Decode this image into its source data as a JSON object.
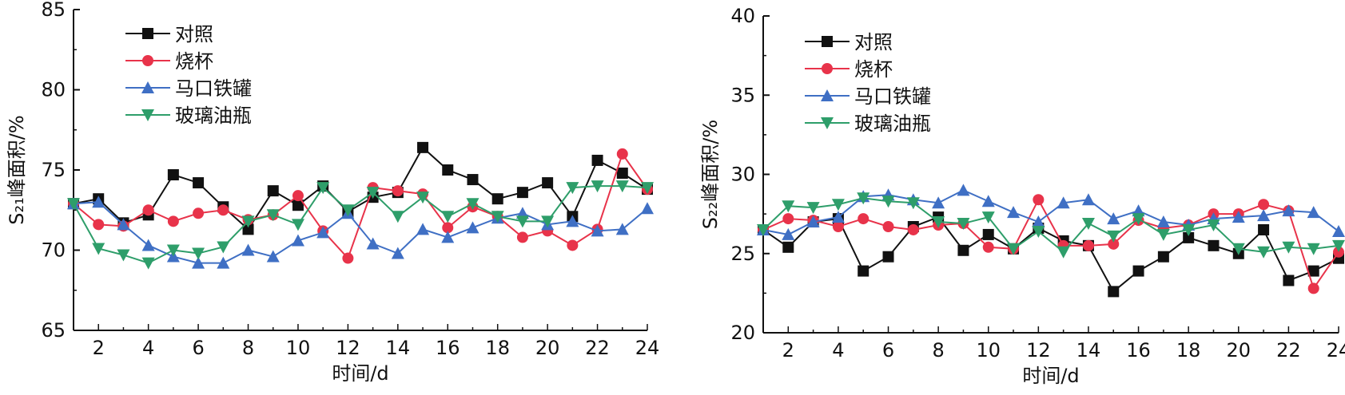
{
  "colors": {
    "对照": "#111111",
    "烧杯": "#e8334a",
    "马口铁罐": "#3f6fc4",
    "玻璃油瓶": "#2e9e6a"
  },
  "chart_data": [
    {
      "type": "line",
      "xlabel": "时间/d",
      "ylabel": "S₂₁峰面积/%",
      "xlim": [
        1,
        24
      ],
      "ylim": [
        65,
        85
      ],
      "xticks": [
        2,
        4,
        6,
        8,
        10,
        12,
        14,
        16,
        18,
        20,
        22,
        24
      ],
      "yticks": [
        65,
        70,
        75,
        80,
        85
      ],
      "x": [
        1,
        2,
        3,
        4,
        5,
        6,
        7,
        8,
        9,
        10,
        11,
        12,
        13,
        14,
        15,
        16,
        17,
        18,
        19,
        20,
        21,
        22,
        23,
        24
      ],
      "legend": "top-left",
      "series": [
        {
          "name": "对照",
          "marker": "square",
          "values": [
            72.9,
            73.2,
            71.7,
            72.2,
            74.7,
            74.2,
            72.7,
            71.3,
            73.7,
            72.8,
            74.0,
            72.4,
            73.3,
            73.6,
            76.4,
            75.0,
            74.4,
            73.2,
            73.6,
            74.2,
            72.1,
            75.6,
            74.8,
            73.8
          ]
        },
        {
          "name": "烧杯",
          "marker": "circle",
          "values": [
            72.9,
            71.6,
            71.5,
            72.5,
            71.8,
            72.3,
            72.5,
            71.9,
            72.2,
            73.4,
            71.2,
            69.5,
            73.9,
            73.7,
            73.5,
            71.4,
            72.7,
            72.1,
            70.8,
            71.2,
            70.3,
            71.3,
            76.0,
            73.8
          ]
        },
        {
          "name": "马口铁罐",
          "marker": "triangle-up",
          "values": [
            72.9,
            73.0,
            71.6,
            70.3,
            69.6,
            69.2,
            69.2,
            70.0,
            69.6,
            70.6,
            71.1,
            72.3,
            70.4,
            69.8,
            71.3,
            70.8,
            71.4,
            72.0,
            72.3,
            71.6,
            71.8,
            71.2,
            71.3,
            72.6
          ]
        },
        {
          "name": "玻璃油瓶",
          "marker": "triangle-down",
          "values": [
            72.9,
            70.1,
            69.7,
            69.2,
            70.0,
            69.8,
            70.2,
            71.8,
            72.2,
            71.6,
            73.9,
            72.5,
            73.6,
            72.1,
            73.3,
            72.1,
            72.9,
            72.1,
            71.8,
            71.8,
            73.9,
            74.0,
            74.0,
            73.9
          ]
        }
      ]
    },
    {
      "type": "line",
      "xlabel": "时间/d",
      "ylabel": "S₂₂峰面积/%",
      "xlim": [
        1,
        24
      ],
      "ylim": [
        20,
        40
      ],
      "xticks": [
        2,
        4,
        6,
        8,
        10,
        12,
        14,
        16,
        18,
        20,
        22,
        24
      ],
      "yticks": [
        20,
        25,
        30,
        35,
        40
      ],
      "x": [
        1,
        2,
        3,
        4,
        5,
        6,
        7,
        8,
        9,
        10,
        11,
        12,
        13,
        14,
        15,
        16,
        17,
        18,
        19,
        20,
        21,
        22,
        23,
        24
      ],
      "legend": "top-left",
      "series": [
        {
          "name": "对照",
          "marker": "square",
          "values": [
            26.5,
            25.4,
            27.0,
            27.2,
            23.9,
            24.8,
            26.7,
            27.3,
            25.2,
            26.2,
            25.3,
            26.6,
            25.8,
            25.5,
            22.6,
            23.9,
            24.8,
            26.0,
            25.5,
            25.0,
            26.5,
            23.3,
            23.9,
            24.7
          ]
        },
        {
          "name": "烧杯",
          "marker": "circle",
          "values": [
            26.5,
            27.2,
            27.1,
            26.7,
            27.2,
            26.7,
            26.5,
            26.8,
            26.9,
            25.4,
            25.3,
            28.4,
            25.5,
            25.5,
            25.6,
            27.1,
            26.6,
            26.8,
            27.5,
            27.5,
            28.1,
            27.7,
            22.8,
            25.1
          ]
        },
        {
          "name": "马口铁罐",
          "marker": "triangle-up",
          "values": [
            26.5,
            26.2,
            27.0,
            27.3,
            28.6,
            28.7,
            28.4,
            28.2,
            29.0,
            28.3,
            27.6,
            27.0,
            28.2,
            28.4,
            27.2,
            27.7,
            27.0,
            26.8,
            27.2,
            27.3,
            27.4,
            27.7,
            27.6,
            26.4
          ]
        },
        {
          "name": "玻璃油瓶",
          "marker": "triangle-down",
          "values": [
            26.5,
            28.0,
            27.9,
            28.1,
            28.5,
            28.3,
            28.2,
            27.0,
            26.9,
            27.3,
            25.3,
            26.4,
            25.1,
            26.9,
            26.1,
            27.2,
            26.2,
            26.5,
            26.8,
            25.3,
            25.1,
            25.4,
            25.3,
            25.5
          ]
        }
      ]
    }
  ]
}
